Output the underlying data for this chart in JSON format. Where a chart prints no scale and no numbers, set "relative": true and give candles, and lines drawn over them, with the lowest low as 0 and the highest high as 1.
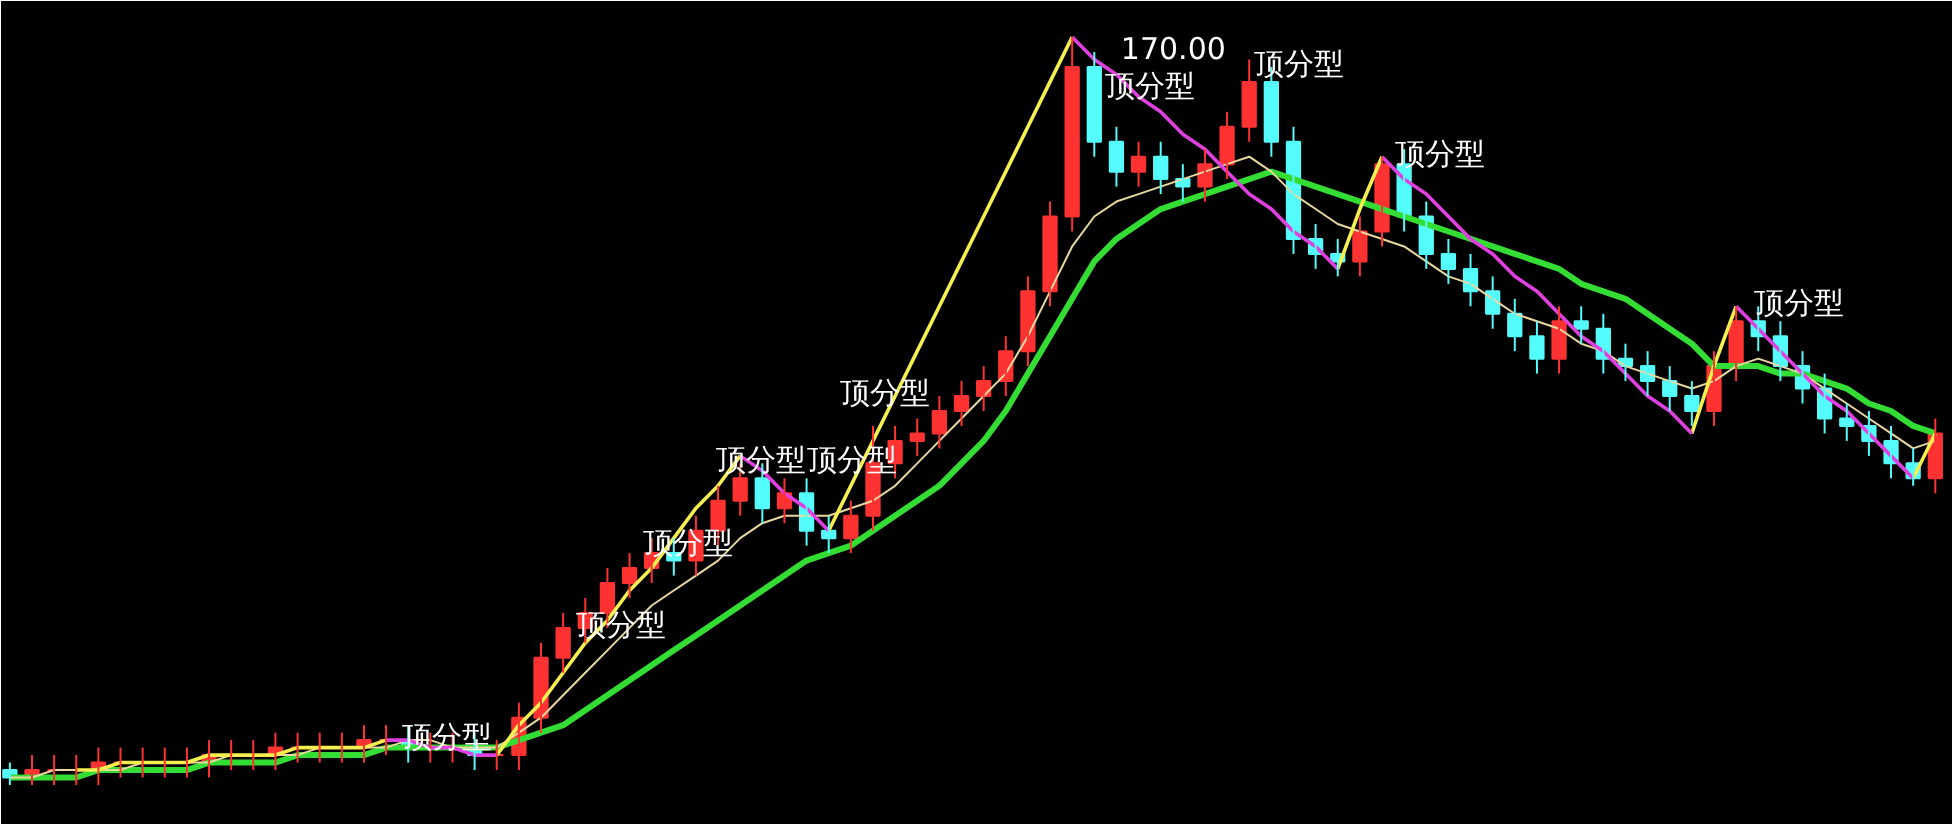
{
  "chart_data": {
    "type": "candlestick",
    "relative": true,
    "tick_labels": false,
    "categories": [
      null,
      null,
      null,
      null,
      null,
      null,
      null,
      null,
      null,
      null,
      null,
      null,
      null,
      null,
      null,
      null,
      null,
      null,
      null,
      null,
      null,
      null,
      null,
      null,
      null,
      null,
      null,
      null,
      null,
      null,
      null,
      null,
      null,
      null,
      null,
      null,
      null,
      null,
      null,
      null,
      null,
      null,
      null,
      null,
      null,
      null,
      null,
      null,
      null,
      null,
      null,
      null,
      null,
      null,
      null,
      null,
      null,
      null,
      null,
      null,
      null,
      null,
      null,
      null,
      null,
      null,
      null,
      null,
      null,
      null,
      null,
      null,
      null,
      null,
      null,
      null,
      null,
      null,
      null,
      null,
      null,
      null,
      null,
      null,
      null,
      null,
      null,
      null
    ],
    "ohlc": [
      [
        0.02,
        0.03,
        0.0,
        0.01
      ],
      [
        0.01,
        0.04,
        0.0,
        0.02
      ],
      [
        0.02,
        0.04,
        0.0,
        0.02
      ],
      [
        0.02,
        0.04,
        0.0,
        0.02
      ],
      [
        0.02,
        0.05,
        0.0,
        0.03
      ],
      [
        0.03,
        0.05,
        0.01,
        0.03
      ],
      [
        0.03,
        0.05,
        0.01,
        0.03
      ],
      [
        0.03,
        0.05,
        0.01,
        0.03
      ],
      [
        0.03,
        0.05,
        0.01,
        0.03
      ],
      [
        0.03,
        0.06,
        0.01,
        0.04
      ],
      [
        0.04,
        0.06,
        0.02,
        0.04
      ],
      [
        0.04,
        0.06,
        0.02,
        0.04
      ],
      [
        0.04,
        0.07,
        0.02,
        0.05
      ],
      [
        0.05,
        0.07,
        0.03,
        0.05
      ],
      [
        0.05,
        0.07,
        0.03,
        0.05
      ],
      [
        0.05,
        0.07,
        0.03,
        0.05
      ],
      [
        0.05,
        0.08,
        0.03,
        0.06
      ],
      [
        0.06,
        0.08,
        0.04,
        0.06
      ],
      [
        0.06,
        0.08,
        0.03,
        0.05
      ],
      [
        0.05,
        0.07,
        0.03,
        0.05
      ],
      [
        0.05,
        0.07,
        0.03,
        0.05
      ],
      [
        0.05,
        0.07,
        0.02,
        0.04
      ],
      [
        0.04,
        0.06,
        0.02,
        0.04
      ],
      [
        0.04,
        0.11,
        0.02,
        0.09
      ],
      [
        0.09,
        0.19,
        0.07,
        0.17
      ],
      [
        0.17,
        0.23,
        0.15,
        0.21
      ],
      [
        0.21,
        0.25,
        0.19,
        0.23
      ],
      [
        0.23,
        0.29,
        0.21,
        0.27
      ],
      [
        0.27,
        0.31,
        0.25,
        0.29
      ],
      [
        0.29,
        0.33,
        0.27,
        0.31
      ],
      [
        0.31,
        0.33,
        0.28,
        0.3
      ],
      [
        0.3,
        0.36,
        0.28,
        0.34
      ],
      [
        0.34,
        0.4,
        0.32,
        0.38
      ],
      [
        0.38,
        0.43,
        0.36,
        0.41
      ],
      [
        0.41,
        0.43,
        0.35,
        0.37
      ],
      [
        0.37,
        0.41,
        0.35,
        0.39
      ],
      [
        0.39,
        0.41,
        0.32,
        0.34
      ],
      [
        0.34,
        0.36,
        0.31,
        0.33
      ],
      [
        0.33,
        0.38,
        0.31,
        0.36
      ],
      [
        0.36,
        0.48,
        0.34,
        0.43
      ],
      [
        0.43,
        0.48,
        0.41,
        0.46
      ],
      [
        0.46,
        0.49,
        0.44,
        0.47
      ],
      [
        0.47,
        0.52,
        0.45,
        0.5
      ],
      [
        0.5,
        0.54,
        0.48,
        0.52
      ],
      [
        0.52,
        0.56,
        0.5,
        0.54
      ],
      [
        0.54,
        0.6,
        0.52,
        0.58
      ],
      [
        0.58,
        0.68,
        0.56,
        0.66
      ],
      [
        0.66,
        0.78,
        0.64,
        0.76
      ],
      [
        0.76,
        1.0,
        0.74,
        0.96
      ],
      [
        0.96,
        0.98,
        0.84,
        0.86
      ],
      [
        0.86,
        0.88,
        0.8,
        0.82
      ],
      [
        0.82,
        0.86,
        0.8,
        0.84
      ],
      [
        0.84,
        0.86,
        0.79,
        0.81
      ],
      [
        0.81,
        0.83,
        0.78,
        0.8
      ],
      [
        0.8,
        0.85,
        0.78,
        0.83
      ],
      [
        0.83,
        0.9,
        0.81,
        0.88
      ],
      [
        0.88,
        0.97,
        0.86,
        0.94
      ],
      [
        0.94,
        0.96,
        0.84,
        0.86
      ],
      [
        0.86,
        0.88,
        0.71,
        0.73
      ],
      [
        0.73,
        0.75,
        0.69,
        0.71
      ],
      [
        0.71,
        0.73,
        0.68,
        0.7
      ],
      [
        0.7,
        0.76,
        0.68,
        0.74
      ],
      [
        0.74,
        0.84,
        0.72,
        0.83
      ],
      [
        0.83,
        0.85,
        0.74,
        0.76
      ],
      [
        0.76,
        0.78,
        0.69,
        0.71
      ],
      [
        0.71,
        0.73,
        0.67,
        0.69
      ],
      [
        0.69,
        0.71,
        0.64,
        0.66
      ],
      [
        0.66,
        0.68,
        0.61,
        0.63
      ],
      [
        0.63,
        0.65,
        0.58,
        0.6
      ],
      [
        0.6,
        0.62,
        0.55,
        0.57
      ],
      [
        0.57,
        0.64,
        0.55,
        0.62
      ],
      [
        0.62,
        0.64,
        0.59,
        0.61
      ],
      [
        0.61,
        0.63,
        0.55,
        0.57
      ],
      [
        0.57,
        0.59,
        0.54,
        0.56
      ],
      [
        0.56,
        0.58,
        0.52,
        0.54
      ],
      [
        0.54,
        0.56,
        0.5,
        0.52
      ],
      [
        0.52,
        0.54,
        0.48,
        0.5
      ],
      [
        0.5,
        0.58,
        0.48,
        0.56
      ],
      [
        0.56,
        0.64,
        0.54,
        0.62
      ],
      [
        0.62,
        0.64,
        0.58,
        0.6
      ],
      [
        0.6,
        0.62,
        0.54,
        0.56
      ],
      [
        0.56,
        0.58,
        0.51,
        0.53
      ],
      [
        0.53,
        0.55,
        0.47,
        0.49
      ],
      [
        0.49,
        0.51,
        0.46,
        0.48
      ],
      [
        0.48,
        0.5,
        0.44,
        0.46
      ],
      [
        0.46,
        0.48,
        0.41,
        0.43
      ],
      [
        0.43,
        0.45,
        0.4,
        0.41
      ],
      [
        0.41,
        0.49,
        0.39,
        0.47
      ]
    ],
    "colors": [
      "#54fcfc",
      "#ff3232",
      "#ff3232",
      "#ff3232",
      "#ff3232",
      "#ff3232",
      "#ff3232",
      "#ff3232",
      "#ff3232",
      "#ff3232",
      "#ff3232",
      "#ff3232",
      "#ff3232",
      "#ff3232",
      "#ff3232",
      "#ff3232",
      "#ff3232",
      "#ff3232",
      "#54fcfc",
      "#ff3232",
      "#ff3232",
      "#54fcfc",
      "#ff3232",
      "#ff3232",
      "#ff3232",
      "#ff3232",
      "#ff3232",
      "#ff3232",
      "#ff3232",
      "#ff3232",
      "#54fcfc",
      "#ff3232",
      "#ff3232",
      "#ff3232",
      "#54fcfc",
      "#ff3232",
      "#54fcfc",
      "#54fcfc",
      "#ff3232",
      "#ff3232",
      "#ff3232",
      "#ff3232",
      "#ff3232",
      "#ff3232",
      "#ff3232",
      "#ff3232",
      "#ff3232",
      "#ff3232",
      "#ff3232",
      "#54fcfc",
      "#54fcfc",
      "#ff3232",
      "#54fcfc",
      "#54fcfc",
      "#ff3232",
      "#ff3232",
      "#ff3232",
      "#54fcfc",
      "#54fcfc",
      "#54fcfc",
      "#54fcfc",
      "#ff3232",
      "#ff3232",
      "#54fcfc",
      "#54fcfc",
      "#54fcfc",
      "#54fcfc",
      "#54fcfc",
      "#54fcfc",
      "#54fcfc",
      "#ff3232",
      "#54fcfc",
      "#54fcfc",
      "#54fcfc",
      "#54fcfc",
      "#54fcfc",
      "#54fcfc",
      "#ff3232",
      "#ff3232",
      "#54fcfc",
      "#54fcfc",
      "#54fcfc",
      "#54fcfc",
      "#54fcfc",
      "#54fcfc",
      "#54fcfc",
      "#54fcfc",
      "#ff3232"
    ],
    "series": [
      {
        "type": "line",
        "color": "#33dd33",
        "values": [
          0.01,
          0.01,
          0.01,
          0.01,
          0.02,
          0.02,
          0.02,
          0.02,
          0.02,
          0.03,
          0.03,
          0.03,
          0.03,
          0.04,
          0.04,
          0.04,
          0.04,
          0.05,
          0.05,
          0.05,
          0.05,
          0.05,
          0.05,
          0.06,
          0.07,
          0.08,
          0.1,
          0.12,
          0.14,
          0.16,
          0.18,
          0.2,
          0.22,
          0.24,
          0.26,
          0.28,
          0.3,
          0.31,
          0.32,
          0.34,
          0.36,
          0.38,
          0.4,
          0.43,
          0.46,
          0.5,
          0.55,
          0.6,
          0.65,
          0.7,
          0.73,
          0.75,
          0.77,
          0.78,
          0.79,
          0.8,
          0.81,
          0.82,
          0.81,
          0.8,
          0.79,
          0.78,
          0.77,
          0.76,
          0.75,
          0.74,
          0.73,
          0.72,
          0.71,
          0.7,
          0.69,
          0.67,
          0.66,
          0.65,
          0.63,
          0.61,
          0.59,
          0.56,
          0.56,
          0.56,
          0.55,
          0.55,
          0.54,
          0.53,
          0.51,
          0.5,
          0.48,
          0.47
        ]
      },
      {
        "type": "line",
        "color": "#e8d8a0",
        "values": [
          0.01,
          0.01,
          0.02,
          0.02,
          0.02,
          0.02,
          0.03,
          0.03,
          0.03,
          0.03,
          0.04,
          0.04,
          0.04,
          0.04,
          0.05,
          0.05,
          0.05,
          0.05,
          0.06,
          0.06,
          0.05,
          0.05,
          0.05,
          0.07,
          0.09,
          0.12,
          0.15,
          0.18,
          0.21,
          0.24,
          0.26,
          0.28,
          0.3,
          0.33,
          0.35,
          0.36,
          0.36,
          0.36,
          0.37,
          0.38,
          0.4,
          0.43,
          0.46,
          0.49,
          0.52,
          0.55,
          0.6,
          0.66,
          0.72,
          0.76,
          0.78,
          0.79,
          0.8,
          0.81,
          0.82,
          0.83,
          0.84,
          0.82,
          0.79,
          0.77,
          0.75,
          0.74,
          0.73,
          0.72,
          0.7,
          0.68,
          0.67,
          0.65,
          0.63,
          0.62,
          0.61,
          0.59,
          0.58,
          0.56,
          0.55,
          0.54,
          0.53,
          0.54,
          0.56,
          0.57,
          0.56,
          0.55,
          0.53,
          0.51,
          0.49,
          0.47,
          0.45,
          0.46
        ]
      },
      {
        "type": "line",
        "color": "#f5f050",
        "values": [
          null,
          null,
          null,
          0.02,
          0.02,
          0.03,
          0.03,
          0.03,
          0.03,
          0.04,
          0.04,
          0.04,
          0.04,
          0.05,
          0.05,
          0.05,
          0.05,
          0.06,
          null,
          null,
          null,
          null,
          0.04,
          0.08,
          0.11,
          0.15,
          0.19,
          0.22,
          0.26,
          0.29,
          0.33,
          0.37,
          0.4,
          0.44,
          null,
          null,
          null,
          0.34,
          0.4,
          0.46,
          0.52,
          0.58,
          0.64,
          0.7,
          0.76,
          0.82,
          0.88,
          0.94,
          1.0,
          null,
          null,
          null,
          null,
          null,
          null,
          null,
          null,
          null,
          null,
          null,
          0.69,
          0.77,
          0.84,
          null,
          null,
          null,
          null,
          null,
          null,
          null,
          null,
          null,
          null,
          null,
          null,
          null,
          0.47,
          0.56,
          0.64,
          null,
          null,
          null,
          null,
          null,
          null,
          null,
          0.41,
          0.47
        ]
      },
      {
        "type": "line",
        "color": "#e040e0",
        "values": [
          null,
          null,
          null,
          null,
          null,
          null,
          null,
          null,
          null,
          null,
          null,
          null,
          null,
          null,
          null,
          null,
          null,
          0.06,
          0.06,
          0.05,
          0.05,
          0.04,
          0.04,
          null,
          null,
          null,
          null,
          null,
          null,
          null,
          null,
          null,
          null,
          0.44,
          0.42,
          0.39,
          0.37,
          0.34,
          null,
          null,
          null,
          null,
          null,
          null,
          null,
          null,
          null,
          null,
          1.0,
          0.97,
          0.95,
          0.92,
          0.9,
          0.87,
          0.85,
          0.82,
          0.79,
          0.77,
          0.74,
          0.72,
          0.69,
          null,
          0.84,
          0.81,
          0.79,
          0.76,
          0.73,
          0.71,
          0.68,
          0.66,
          0.63,
          0.6,
          0.58,
          0.55,
          0.52,
          0.5,
          0.47,
          null,
          0.64,
          0.61,
          0.58,
          0.55,
          0.52,
          0.5,
          0.47,
          0.44,
          0.41,
          null
        ]
      }
    ],
    "annotations": [
      "顶分型",
      "顶分型",
      "顶分型",
      "顶分型",
      "顶分型",
      "顶分型",
      "170.00",
      "顶分型",
      "顶分型",
      "顶分型",
      "顶分型"
    ]
  }
}
